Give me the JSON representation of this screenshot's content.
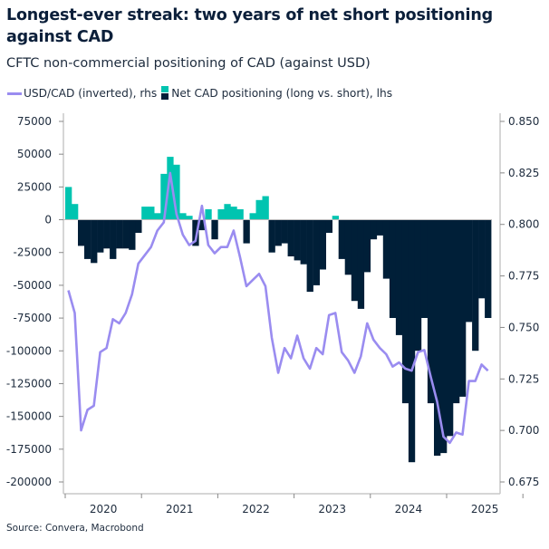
{
  "title": "Longest-ever streak: two years of net short positioning against CAD",
  "subtitle": "CFTC non-commercial positioning of CAD (against USD)",
  "source": "Source: Convera, Macrobond",
  "colors": {
    "line": "#9a8cf0",
    "long": "#00c4b0",
    "short": "#001f38",
    "axis": "#c8c8c8",
    "text": "#1d2b3d"
  },
  "chart_data": {
    "type": "bar+line",
    "legend_position": "top-left",
    "grid": false,
    "series": [
      {
        "name": "USD/CAD (inverted), rhs",
        "type": "line",
        "axis": "right",
        "values": [
          0.768,
          0.757,
          0.7,
          0.71,
          0.712,
          0.738,
          0.74,
          0.754,
          0.752,
          0.757,
          0.766,
          0.781,
          0.785,
          0.789,
          0.797,
          0.801,
          0.825,
          0.805,
          0.795,
          0.79,
          0.792,
          0.809,
          0.79,
          0.786,
          0.789,
          0.789,
          0.797,
          0.784,
          0.77,
          0.773,
          0.776,
          0.77,
          0.745,
          0.728,
          0.74,
          0.735,
          0.746,
          0.735,
          0.73,
          0.74,
          0.737,
          0.756,
          0.757,
          0.738,
          0.734,
          0.728,
          0.736,
          0.752,
          0.744,
          0.74,
          0.737,
          0.731,
          0.733,
          0.73,
          0.729,
          0.738,
          0.739,
          0.726,
          0.714,
          0.697,
          0.694,
          0.699,
          0.698,
          0.724,
          0.724,
          0.732,
          0.729
        ]
      },
      {
        "name": "Net CAD positioning (long vs. short), lhs",
        "type": "bar",
        "axis": "left",
        "values": [
          25000,
          12000,
          -20000,
          -30000,
          -33000,
          -25000,
          -22000,
          -30000,
          -22000,
          -22000,
          -23000,
          -10000,
          10000,
          10000,
          5000,
          35000,
          48000,
          42000,
          5000,
          3000,
          -20000,
          -8000,
          8000,
          -15000,
          8000,
          12000,
          10000,
          8000,
          -18000,
          5000,
          15000,
          18000,
          -25000,
          -20000,
          -18000,
          -28000,
          -31000,
          -34000,
          -55000,
          -50000,
          -38000,
          -10000,
          3000,
          -30000,
          -42000,
          -62000,
          -68000,
          -40000,
          -15000,
          -12000,
          -45000,
          -75000,
          -88000,
          -140000,
          -185000,
          -100000,
          -75000,
          -140000,
          -180000,
          -178000,
          -165000,
          -140000,
          -135000,
          -78000,
          -100000,
          -60000,
          -75000
        ]
      }
    ],
    "x_start": "2020-01",
    "x_frequency": "monthly",
    "x_tick_labels": [
      "2020",
      "2021",
      "2022",
      "2023",
      "2024",
      "2025"
    ],
    "left_axis": {
      "ylim": [
        -200000,
        75000
      ],
      "ticks": [
        "75000",
        "50000",
        "25000",
        "0",
        "-25000",
        "-50000",
        "-75000",
        "-100000",
        "-125000",
        "-150000",
        "-175000",
        "-200000"
      ]
    },
    "right_axis": {
      "ylim": [
        0.675,
        0.85
      ],
      "inverted_series": true,
      "ticks": [
        "0.850",
        "0.825",
        "0.800",
        "0.775",
        "0.750",
        "0.725",
        "0.700",
        "0.675"
      ]
    }
  }
}
